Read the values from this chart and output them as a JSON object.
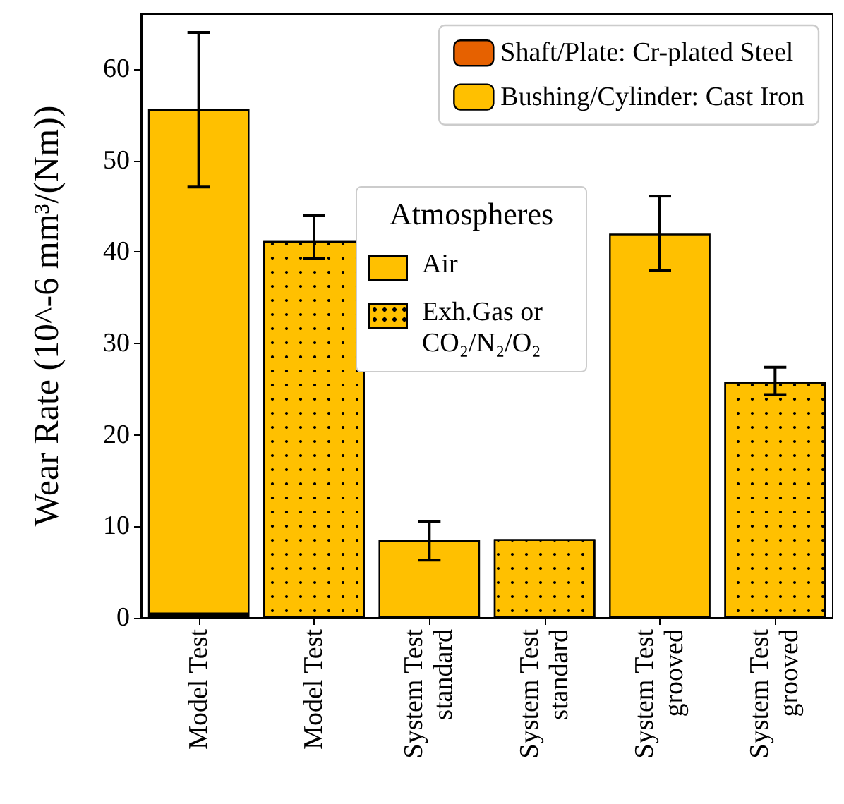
{
  "chart_data": {
    "type": "bar",
    "stacked": true,
    "ylabel": "Wear Rate (10^-6 mm³/(Nm))",
    "categories": [
      "Model Test",
      "Model Test",
      "System Test\nstandard",
      "System Test\nstandard",
      "System Test\ngrooved",
      "System Test\ngrooved"
    ],
    "series": [
      {
        "name": "Shaft/Plate: Cr-plated Steel",
        "color": "#e66100",
        "values": [
          0.4,
          null,
          0,
          0,
          0,
          0
        ]
      },
      {
        "name": "Bushing/Cylinder: Cast Iron",
        "color": "#ffc000",
        "values": [
          55.2,
          41.2,
          8.5,
          8.6,
          42.0,
          25.8
        ],
        "errors": [
          [
            47.1,
            64.0
          ],
          [
            39.3,
            44.0
          ],
          [
            6.3,
            10.5
          ],
          null,
          [
            38.0,
            46.1
          ],
          [
            24.4,
            27.4
          ]
        ]
      }
    ],
    "ylim": [
      0,
      66
    ],
    "yticks": [
      0,
      10,
      20,
      30,
      40,
      50,
      60
    ],
    "grid": false,
    "legend": "top right",
    "legend_title": "Atmospheres",
    "annotations": [
      "Air",
      "Exh.Gas or CO₂/N₂/O₂"
    ]
  }
}
